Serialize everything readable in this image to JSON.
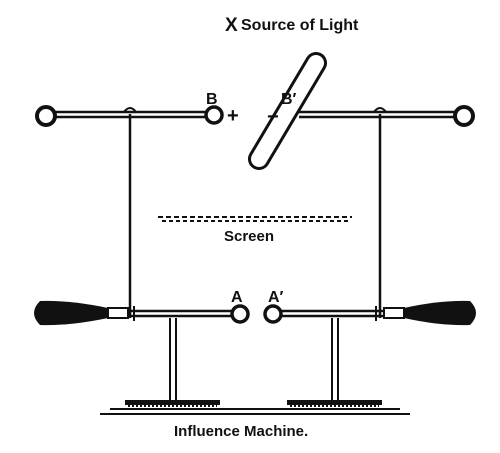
{
  "diagram": {
    "source_label": "Source of Light",
    "source_marker": "X",
    "terminal_b": "B",
    "terminal_b_prime": "B′",
    "terminal_a": "A",
    "terminal_a_prime": "A′",
    "plus_sign": "+",
    "minus_sign": "−",
    "screen_label": "Screen",
    "caption": "Influence Machine."
  },
  "colors": {
    "ink": "#111111",
    "background": "#ffffff"
  }
}
